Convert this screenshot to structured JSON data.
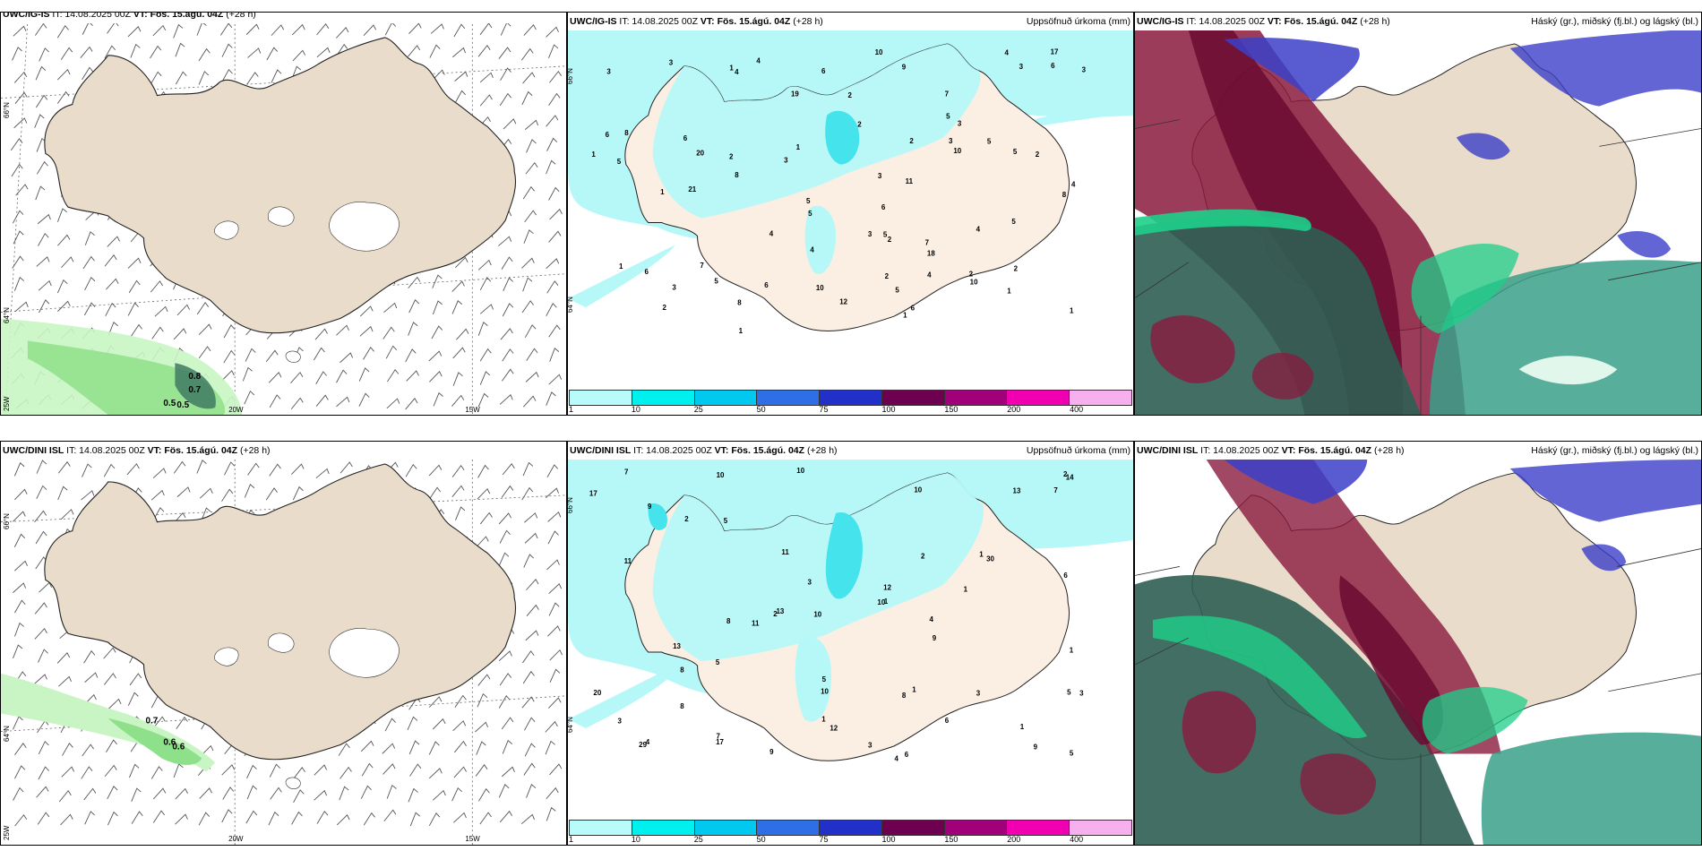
{
  "panels": {
    "top_wind": {
      "model": "UWC/IG-IS",
      "it": "IT: 14.08.2025 00Z",
      "vt": "VT: Fös. 15.ágú. 04Z",
      "lead": "(+28 h)"
    },
    "top_precip": {
      "model": "UWC/IG-IS",
      "it": "IT: 14.08.2025 00Z",
      "vt": "VT: Fös. 15.ágú. 04Z",
      "lead": "(+28 h)",
      "title": "Uppsöfnuð úrkoma (mm)"
    },
    "top_cloud": {
      "model": "UWC/IG-IS",
      "it": "IT: 14.08.2025 00Z",
      "vt": "VT: Fös. 15.ágú. 04Z",
      "lead": "(+28 h)",
      "title": "Háský (gr.), miðský (fj.bl.) og lágský (bl.)"
    },
    "bot_wind": {
      "model": "UWC/DINI ISL",
      "it": "IT: 14.08.2025 00Z",
      "vt": "VT: Fös. 15.ágú. 04Z",
      "lead": "(+28 h)"
    },
    "bot_precip": {
      "model": "UWC/DINI ISL",
      "it": "IT: 14.08.2025 00Z",
      "vt": "VT: Fös. 15.ágú. 04Z",
      "lead": "(+28 h)",
      "title": "Uppsöfnuð úrkoma (mm)"
    },
    "bot_cloud": {
      "model": "UWC/DINI ISL",
      "it": "IT: 14.08.2025 00Z",
      "vt": "VT: Fös. 15.ágú. 04Z",
      "lead": "(+28 h)",
      "title": "Háský (gr.), miðský (fj.bl.) og lágský (bl.)"
    }
  },
  "axes": {
    "lat66": "66°N",
    "lat64": "64°N",
    "lon25": "25W",
    "lon20": "20W",
    "lon15": "15W"
  },
  "legend": {
    "ticks": [
      "1",
      "10",
      "25",
      "50",
      "75",
      "100",
      "150",
      "200",
      "400"
    ],
    "colors": [
      "#b8fbfb",
      "#00efef",
      "#00c8ef",
      "#2e6fe6",
      "#2030c8",
      "#6e0050",
      "#a0007a",
      "#f000b0",
      "#f6b0ee"
    ]
  },
  "top_precip_labels": [
    "6",
    "4",
    "7",
    "6",
    "5",
    "5",
    "8",
    "8",
    "5",
    "5",
    "6",
    "6",
    "5",
    "5",
    "10",
    "4",
    "5",
    "3",
    "4",
    "5",
    "2",
    "2",
    "8",
    "10",
    "11",
    "3",
    "21",
    "20",
    "12",
    "19",
    "18",
    "17",
    "7",
    "6",
    "4",
    "10",
    "10",
    "8",
    "4",
    "7",
    "6",
    "3",
    "3",
    "2",
    "9",
    "5",
    "3",
    "4",
    "6",
    "6",
    "4",
    "2",
    "2",
    "5",
    "3",
    "1",
    "1",
    "1",
    "1",
    "1",
    "1",
    "1",
    "3",
    "1",
    "1",
    "2",
    "3",
    "2",
    "4",
    "3",
    "2",
    "2",
    "3",
    "2"
  ],
  "bot_precip_labels": [
    "9",
    "4",
    "7",
    "6",
    "10",
    "9",
    "8",
    "9",
    "10",
    "11",
    "13",
    "12",
    "13",
    "10",
    "10",
    "10",
    "11",
    "17",
    "11",
    "17",
    "8",
    "14",
    "12",
    "29",
    "30",
    "13",
    "20",
    "8",
    "7",
    "9",
    "10",
    "6",
    "5",
    "7",
    "8",
    "4",
    "5",
    "3",
    "2",
    "1",
    "1",
    "1",
    "3",
    "4",
    "5",
    "1",
    "1",
    "3",
    "2",
    "1",
    "2",
    "6",
    "5",
    "3",
    "5",
    "1",
    "2",
    "3"
  ],
  "top_wind_labels": [
    "0.8",
    "0.7",
    "0.5",
    "0.5"
  ],
  "bot_wind_labels": [
    "0.7",
    "0.6",
    "0.6"
  ],
  "colors": {
    "land": "#e9dccb",
    "land_precip": "#fbeee2",
    "precip_light": "#b6f8f8",
    "precip_mid": "#45e3ec",
    "green_light": "#c8f5c3",
    "green_mid": "#8fe08a",
    "green_dark": "#3f7a63"
  }
}
